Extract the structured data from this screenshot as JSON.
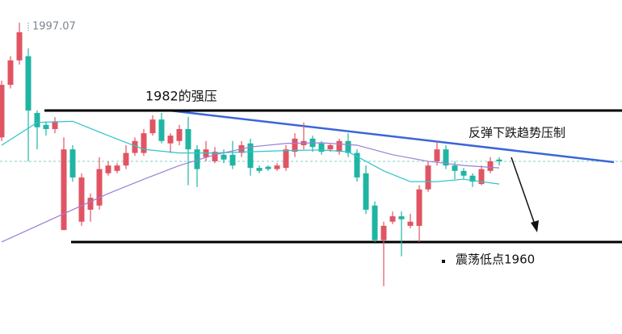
{
  "chart_data": {
    "type": "candlestick",
    "high_label": 1997.07,
    "annotations": {
      "resistance": "1982的强压",
      "trend": "反弹下跌趋势压制",
      "support": "震荡低点1960"
    },
    "levels": [
      1982,
      1960
    ],
    "last_price": 1973.5,
    "ylim": [
      1944.6,
      2000.5
    ],
    "up_color": "#e05563",
    "down_color": "#1fb5a3",
    "open": [
      1977.5,
      1986.3,
      1990.4,
      1991.1,
      1981.6,
      1979.6,
      1978.9,
      1962,
      1975.5,
      1963.4,
      1965.4,
      1966.1,
      1971.5,
      1971.9,
      1972.8,
      1974.9,
      1974.9,
      1978.2,
      1980.5,
      1976.5,
      1976.9,
      1978.9,
      1975.5,
      1974.2,
      1973.5,
      1974.6,
      1974.6,
      1974.9,
      1976.5,
      1972.4,
      1972.6,
      1972.2,
      1972.4,
      1975.1,
      1976.2,
      1977.3,
      1976.5,
      1975.5,
      1975.1,
      1976.9,
      1974.9,
      1971.5,
      1966.1,
      1960.3,
      1963.4,
      1964.3,
      1962.7,
      1962.7,
      1968.8,
      1973.5,
      1975.5,
      1972.8,
      1971.9,
      1971.1,
      1969.7,
      1971.9,
      1973.8
    ],
    "high": [
      1987,
      1991.1,
      1996.7,
      1992.4,
      1982,
      1980.2,
      1980.9,
      1977.5,
      1976.2,
      1971.5,
      1968.1,
      1974.2,
      1973.5,
      1973.2,
      1976.2,
      1977.5,
      1978.9,
      1981.2,
      1981.6,
      1978.2,
      1979.6,
      1980.9,
      1976.2,
      1976.9,
      1975.9,
      1975.5,
      1976.9,
      1976.9,
      1977.3,
      1972.8,
      1972.8,
      1973.2,
      1976.2,
      1978.2,
      1980,
      1977.8,
      1976.9,
      1976.5,
      1977.3,
      1978.2,
      1975.5,
      1972.8,
      1966.8,
      1963.4,
      1965.1,
      1965.1,
      1964.7,
      1969.5,
      1973.5,
      1976.9,
      1976.2,
      1973.5,
      1972.4,
      1971.5,
      1972.8,
      1974.2,
      1974.2
    ],
    "low": [
      1976.9,
      1985.7,
      1989.7,
      1973.5,
      1975.5,
      1977.8,
      1978.2,
      1962,
      1970.1,
      1962.7,
      1963.4,
      1965.4,
      1971.1,
      1971.5,
      1972.2,
      1974.4,
      1974.4,
      1977.8,
      1976.5,
      1974.9,
      1976.2,
      1969.5,
      1969.2,
      1973.5,
      1973.2,
      1973.2,
      1972.2,
      1974.2,
      1971.1,
      1971.5,
      1971.9,
      1971.9,
      1971.9,
      1974.2,
      1975.5,
      1975.1,
      1974.6,
      1975.1,
      1974.6,
      1974.2,
      1970.1,
      1964.7,
      1960,
      1952.6,
      1963,
      1957.6,
      1962.3,
      1960,
      1968.4,
      1972.8,
      1972.2,
      1970.5,
      1970.5,
      1969.2,
      1969.5,
      1971.5,
      1972.8
    ],
    "close": [
      1986.3,
      1990.4,
      1995.1,
      1982,
      1979.2,
      1978.9,
      1980.2,
      1975.5,
      1970.8,
      1970.8,
      1967.4,
      1972.2,
      1972.8,
      1972.8,
      1974.9,
      1976.9,
      1978.2,
      1980.5,
      1976.9,
      1977.8,
      1978.9,
      1975.5,
      1972.2,
      1975.5,
      1975.1,
      1973.8,
      1972.8,
      1976.2,
      1972.4,
      1971.9,
      1972.2,
      1972.8,
      1975.5,
      1977.3,
      1976.9,
      1975.9,
      1975.1,
      1976.2,
      1976.9,
      1974.9,
      1970.8,
      1965.4,
      1960.3,
      1962.7,
      1964.3,
      1963.8,
      1963.4,
      1968.8,
      1972.8,
      1975.5,
      1972.8,
      1971.9,
      1971.1,
      1970.1,
      1972.2,
      1973.5,
      1973.5
    ],
    "moving_averages": [
      {
        "color": "#2ec4c9",
        "x": [
          0,
          4,
          8,
          12,
          16,
          20,
          24,
          28,
          32,
          36,
          39,
          41,
          43,
          46,
          49,
          52,
          56
        ],
        "values": [
          1976.2,
          1980,
          1980.2,
          1977.8,
          1975.5,
          1974.9,
          1974.9,
          1975.1,
          1975.3,
          1975.4,
          1975.1,
          1973.5,
          1971.9,
          1970.1,
          1970.1,
          1970.5,
          1969.7
        ]
      },
      {
        "color": "#9b7fd4",
        "x": [
          0,
          4,
          8,
          12,
          16,
          20,
          24,
          28,
          32,
          36,
          40,
          44,
          48,
          52,
          56
        ],
        "values": [
          1960,
          1962.7,
          1965.4,
          1968.1,
          1970.5,
          1972.8,
          1974.6,
          1975.9,
          1976.5,
          1976.6,
          1976.2,
          1974.6,
          1973.5,
          1972.8,
          1972.4
        ]
      }
    ]
  }
}
